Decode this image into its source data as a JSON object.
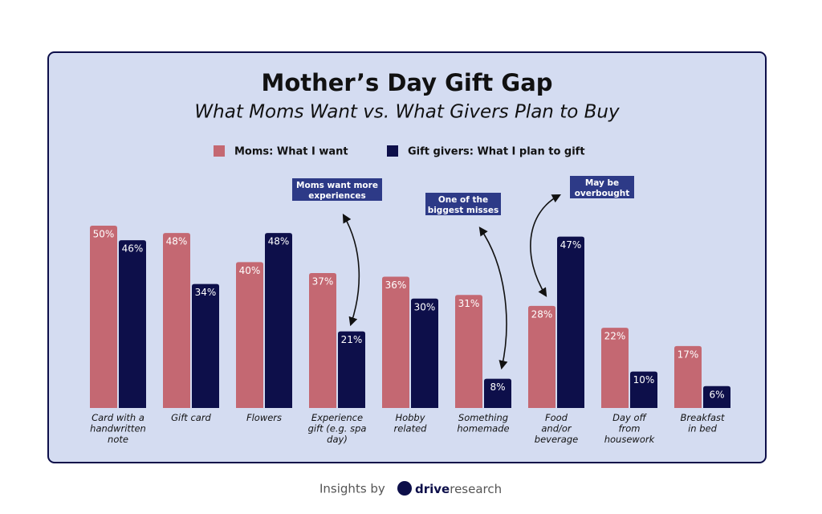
{
  "chart_data": {
    "type": "bar",
    "title": "Mother’s Day Gift Gap",
    "subtitle": "What Moms Want vs. What Givers Plan to Buy",
    "categories": [
      "Card with a\nhandwritten\nnote",
      "Gift card",
      "Flowers",
      "Experience\ngift (e.g. spa\nday)",
      "Hobby\nrelated",
      "Something\nhomemade",
      "Food\nand/or\nbeverage",
      "Day off\nfrom\nhousework",
      "Breakfast\nin bed"
    ],
    "series": [
      {
        "name": "Moms: What I want",
        "color": "#c46872",
        "values": [
          50,
          48,
          40,
          37,
          36,
          31,
          28,
          22,
          17
        ],
        "value_labels": [
          "50%",
          "48%",
          "40%",
          "37%",
          "36%",
          "31%",
          "28%",
          "22%",
          "17%"
        ]
      },
      {
        "name": "Gift givers: What I plan to gift",
        "color": "#0d0f4a",
        "values": [
          46,
          34,
          48,
          21,
          30,
          8,
          47,
          10,
          6
        ],
        "value_labels": [
          "46%",
          "34%",
          "48%",
          "21%",
          "30%",
          "8%",
          "47%",
          "10%",
          "6%"
        ]
      }
    ],
    "legend": "top",
    "annotations": [
      "Moms want more\nexperiences",
      "One of the\nbiggest misses",
      "May be\noverbought"
    ]
  },
  "footer": {
    "prefix": "Insights by",
    "brand_bold": "drive",
    "brand_light": "research"
  }
}
